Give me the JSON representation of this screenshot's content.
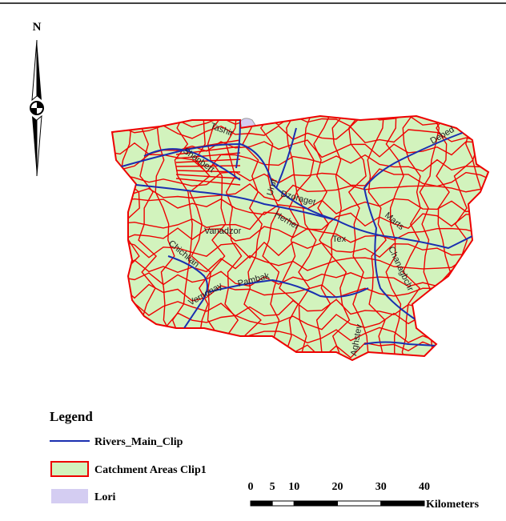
{
  "north": "N",
  "river_labels": [
    "Tashir",
    "Shenbert",
    "Urut",
    "Dzoraget",
    "Debed",
    "Herher",
    "Vanadzor",
    "Tex",
    "Marts",
    "Chichkan",
    "Chanagbchr",
    "Vernonay",
    "Pambak",
    "Aghstev"
  ],
  "legend": {
    "title": "Legend",
    "items": [
      "Rivers_Main_Clip",
      "Catchment Areas  Clip1",
      "Lori"
    ]
  },
  "scale_bar": {
    "ticks": [
      0,
      5,
      10,
      20,
      30,
      40
    ],
    "unit": "Kilometers"
  }
}
